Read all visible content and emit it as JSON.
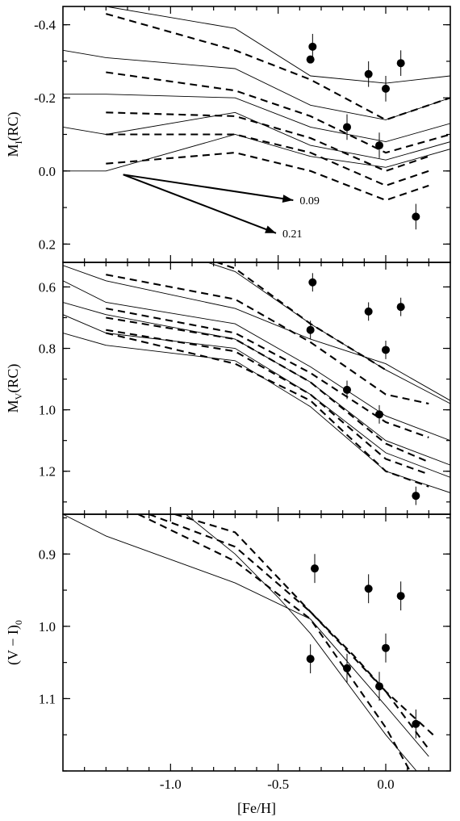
{
  "chart_data": [
    {
      "id": "MI",
      "type": "line",
      "ylabel_main": "M",
      "ylabel_sub": "I",
      "ylabel_tail": "(RC)",
      "xlim": [
        -1.5,
        0.3
      ],
      "ylim": [
        -0.45,
        0.25
      ],
      "y_inverted": true,
      "yticks": [
        -0.4,
        -0.2,
        0.0,
        0.2
      ],
      "ytick_labels": [
        "-0.4",
        "-0.2",
        "0.0",
        "0.2"
      ],
      "xticks": [
        -1.0,
        -0.5,
        0.0
      ],
      "solid_lines": [
        [
          [
            -1.5,
            -0.33
          ],
          [
            -1.3,
            -0.31
          ],
          [
            -0.7,
            -0.28
          ],
          [
            -0.35,
            -0.18
          ],
          [
            0.0,
            -0.14
          ],
          [
            0.3,
            -0.2
          ]
        ],
        [
          [
            -1.5,
            -0.21
          ],
          [
            -1.3,
            -0.21
          ],
          [
            -0.7,
            -0.2
          ],
          [
            -0.35,
            -0.12
          ],
          [
            0.0,
            -0.08
          ],
          [
            0.3,
            -0.13
          ]
        ],
        [
          [
            -1.5,
            -0.12
          ],
          [
            -1.3,
            -0.1
          ],
          [
            -0.7,
            -0.16
          ],
          [
            -0.35,
            -0.07
          ],
          [
            0.0,
            -0.03
          ],
          [
            0.3,
            -0.08
          ]
        ],
        [
          [
            -1.5,
            0.0
          ],
          [
            -1.3,
            0.0
          ],
          [
            -0.7,
            -0.1
          ],
          [
            -0.35,
            -0.04
          ],
          [
            0.0,
            -0.01
          ],
          [
            0.3,
            -0.06
          ]
        ],
        [
          [
            -1.3,
            -0.45
          ],
          [
            -0.7,
            -0.39
          ],
          [
            -0.35,
            -0.26
          ],
          [
            0.0,
            -0.24
          ],
          [
            0.3,
            -0.26
          ]
        ]
      ],
      "dashed_lines": [
        [
          [
            -1.3,
            -0.43
          ],
          [
            -0.7,
            -0.33
          ],
          [
            -0.35,
            -0.25
          ],
          [
            0.0,
            -0.14
          ],
          [
            0.3,
            -0.2
          ]
        ],
        [
          [
            -1.3,
            -0.27
          ],
          [
            -0.7,
            -0.22
          ],
          [
            -0.35,
            -0.15
          ],
          [
            0.0,
            -0.05
          ],
          [
            0.3,
            -0.1
          ]
        ],
        [
          [
            -1.3,
            -0.16
          ],
          [
            -0.7,
            -0.15
          ],
          [
            -0.35,
            -0.09
          ],
          [
            0.0,
            0.0
          ],
          [
            0.2,
            -0.04
          ]
        ],
        [
          [
            -1.3,
            -0.1
          ],
          [
            -0.7,
            -0.1
          ],
          [
            -0.35,
            -0.05
          ],
          [
            0.0,
            0.04
          ],
          [
            0.2,
            0.0
          ]
        ],
        [
          [
            -1.3,
            -0.02
          ],
          [
            -0.7,
            -0.05
          ],
          [
            -0.35,
            0.0
          ],
          [
            0.0,
            0.08
          ],
          [
            0.2,
            0.04
          ]
        ]
      ],
      "points": [
        {
          "x": -0.34,
          "y": -0.34,
          "err": 0.035
        },
        {
          "x": -0.35,
          "y": -0.305,
          "err": 0.0
        },
        {
          "x": -0.08,
          "y": -0.265,
          "err": 0.035
        },
        {
          "x": 0.07,
          "y": -0.295,
          "err": 0.035
        },
        {
          "x": 0.0,
          "y": -0.225,
          "err": 0.035
        },
        {
          "x": -0.18,
          "y": -0.12,
          "err": 0.035
        },
        {
          "x": -0.03,
          "y": -0.07,
          "err": 0.035
        },
        {
          "x": 0.14,
          "y": 0.125,
          "err": 0.035
        }
      ],
      "arrows": [
        {
          "from": [
            -1.22,
            0.01
          ],
          "to": [
            -0.43,
            0.08
          ],
          "label": "0.09"
        },
        {
          "from": [
            -1.22,
            0.01
          ],
          "to": [
            -0.51,
            0.17
          ],
          "label": "0.21"
        }
      ]
    },
    {
      "id": "MV",
      "type": "line",
      "ylabel_main": "M",
      "ylabel_sub": "V",
      "ylabel_tail": "(RC)",
      "xlim": [
        -1.5,
        0.3
      ],
      "ylim": [
        0.52,
        1.34
      ],
      "y_inverted": false,
      "yticks": [
        0.6,
        0.8,
        1.0,
        1.2
      ],
      "ytick_labels": [
        "0.6",
        "0.8",
        "1.0",
        "1.2"
      ],
      "xticks": [
        -1.0,
        -0.5,
        0.0
      ],
      "solid_lines": [
        [
          [
            -1.5,
            0.53
          ],
          [
            -1.3,
            0.58
          ],
          [
            -0.7,
            0.67
          ],
          [
            -0.35,
            0.77
          ],
          [
            0.0,
            0.85
          ],
          [
            0.3,
            0.97
          ]
        ],
        [
          [
            -1.5,
            0.58
          ],
          [
            -1.3,
            0.65
          ],
          [
            -0.7,
            0.72
          ],
          [
            -0.35,
            0.86
          ],
          [
            0.0,
            1.02
          ],
          [
            0.3,
            1.1
          ]
        ],
        [
          [
            -1.5,
            0.65
          ],
          [
            -1.3,
            0.69
          ],
          [
            -0.7,
            0.77
          ],
          [
            -0.35,
            0.91
          ],
          [
            0.0,
            1.1
          ],
          [
            0.3,
            1.18
          ]
        ],
        [
          [
            -1.5,
            0.69
          ],
          [
            -1.3,
            0.75
          ],
          [
            -0.7,
            0.8
          ],
          [
            -0.35,
            0.95
          ],
          [
            0.0,
            1.14
          ],
          [
            0.3,
            1.22
          ]
        ],
        [
          [
            -1.5,
            0.75
          ],
          [
            -1.3,
            0.79
          ],
          [
            -0.7,
            0.84
          ],
          [
            -0.35,
            0.99
          ],
          [
            0.0,
            1.2
          ],
          [
            0.3,
            1.27
          ]
        ],
        [
          [
            -1.0,
            0.48
          ],
          [
            -0.7,
            0.55
          ],
          [
            -0.35,
            0.72
          ],
          [
            0.0,
            0.87
          ],
          [
            0.3,
            0.98
          ]
        ]
      ],
      "dashed_lines": [
        [
          [
            -1.3,
            0.56
          ],
          [
            -0.7,
            0.64
          ],
          [
            -0.35,
            0.78
          ],
          [
            0.0,
            0.95
          ],
          [
            0.2,
            0.98
          ]
        ],
        [
          [
            -1.3,
            0.67
          ],
          [
            -0.7,
            0.75
          ],
          [
            -0.35,
            0.88
          ],
          [
            0.0,
            1.04
          ],
          [
            0.2,
            1.09
          ]
        ],
        [
          [
            -1.3,
            0.7
          ],
          [
            -0.7,
            0.77
          ],
          [
            -0.35,
            0.91
          ],
          [
            0.0,
            1.11
          ],
          [
            0.2,
            1.17
          ]
        ],
        [
          [
            -1.3,
            0.74
          ],
          [
            -0.7,
            0.81
          ],
          [
            -0.35,
            0.95
          ],
          [
            0.0,
            1.16
          ],
          [
            0.2,
            1.21
          ]
        ],
        [
          [
            -1.3,
            0.75
          ],
          [
            -0.7,
            0.85
          ],
          [
            -0.35,
            0.97
          ],
          [
            0.0,
            1.2
          ],
          [
            0.2,
            1.25
          ]
        ],
        [
          [
            -0.95,
            0.48
          ],
          [
            -0.7,
            0.54
          ],
          [
            -0.35,
            0.72
          ],
          [
            0.0,
            0.87
          ]
        ]
      ],
      "points": [
        {
          "x": -0.34,
          "y": 0.585,
          "err": 0.03
        },
        {
          "x": -0.35,
          "y": 0.74,
          "err": 0.03
        },
        {
          "x": -0.08,
          "y": 0.68,
          "err": 0.03
        },
        {
          "x": 0.07,
          "y": 0.665,
          "err": 0.03
        },
        {
          "x": 0.0,
          "y": 0.805,
          "err": 0.03
        },
        {
          "x": -0.18,
          "y": 0.935,
          "err": 0.03
        },
        {
          "x": -0.03,
          "y": 1.015,
          "err": 0.03
        },
        {
          "x": 0.14,
          "y": 1.28,
          "err": 0.03
        }
      ]
    },
    {
      "id": "VI",
      "type": "line",
      "ylabel_main": "(V − I)",
      "ylabel_sub": "0",
      "ylabel_tail": "",
      "xlim": [
        -1.5,
        0.3
      ],
      "ylim": [
        0.845,
        1.2
      ],
      "y_inverted": false,
      "yticks": [
        0.9,
        1.0,
        1.1
      ],
      "ytick_labels": [
        "0.9",
        "1.0",
        "1.1"
      ],
      "xticks": [
        -1.0,
        -0.5,
        0.0
      ],
      "xtick_labels": [
        "-1.0",
        "-0.5",
        "0.0"
      ],
      "xlabel": "[Fe/H]",
      "solid_lines": [
        [
          [
            -1.5,
            0.845
          ],
          [
            -1.3,
            0.875
          ],
          [
            -0.7,
            0.94
          ],
          [
            -0.35,
            0.99
          ],
          [
            0.0,
            1.11
          ],
          [
            0.2,
            1.18
          ]
        ],
        [
          [
            -0.95,
            0.84
          ],
          [
            -0.7,
            0.9
          ],
          [
            -0.5,
            0.96
          ],
          [
            -0.35,
            1.01
          ],
          [
            0.0,
            1.15
          ],
          [
            0.2,
            1.22
          ]
        ]
      ],
      "dashed_lines": [
        [
          [
            -1.1,
            0.845
          ],
          [
            -0.7,
            0.89
          ],
          [
            -0.35,
            0.98
          ],
          [
            0.0,
            1.09
          ],
          [
            0.2,
            1.17
          ]
        ],
        [
          [
            -1.15,
            0.845
          ],
          [
            -0.7,
            0.91
          ],
          [
            -0.35,
            0.99
          ],
          [
            0.0,
            1.14
          ],
          [
            0.15,
            1.22
          ]
        ],
        [
          [
            -0.98,
            0.845
          ],
          [
            -0.7,
            0.87
          ],
          [
            -0.35,
            0.98
          ],
          [
            -0.15,
            1.04
          ],
          [
            0.0,
            1.09
          ],
          [
            0.22,
            1.15
          ]
        ]
      ],
      "points": [
        {
          "x": -0.33,
          "y": 0.92,
          "err": 0.02
        },
        {
          "x": -0.35,
          "y": 1.045,
          "err": 0.02
        },
        {
          "x": -0.08,
          "y": 0.948,
          "err": 0.02
        },
        {
          "x": 0.07,
          "y": 0.958,
          "err": 0.02
        },
        {
          "x": 0.0,
          "y": 1.03,
          "err": 0.02
        },
        {
          "x": -0.18,
          "y": 1.058,
          "err": 0.02
        },
        {
          "x": -0.03,
          "y": 1.083,
          "err": 0.02
        },
        {
          "x": 0.14,
          "y": 1.135,
          "err": 0.02
        }
      ]
    }
  ]
}
